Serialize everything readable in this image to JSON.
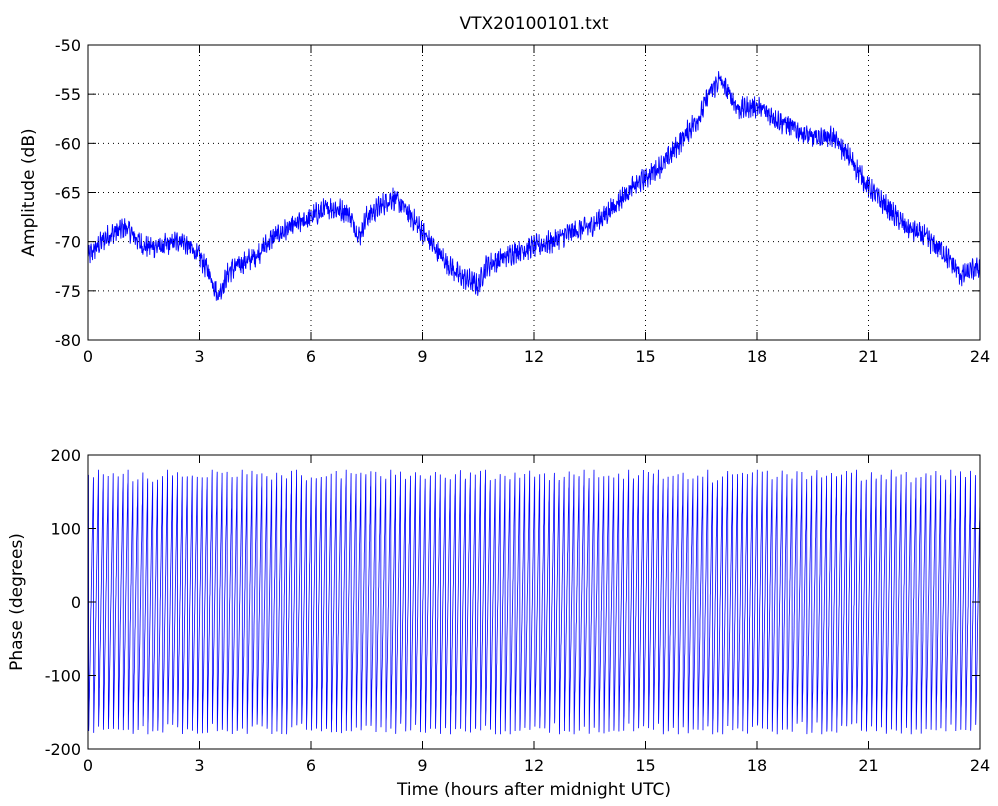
{
  "chart_data": [
    {
      "type": "line",
      "title": "VTX20100101.txt",
      "xlabel": "",
      "ylabel": "Amplitude (dB)",
      "xlim": [
        0,
        24
      ],
      "ylim": [
        -80,
        -50
      ],
      "xticks": [
        0,
        3,
        6,
        9,
        12,
        15,
        18,
        21,
        24
      ],
      "yticks": [
        -80,
        -75,
        -70,
        -65,
        -60,
        -55,
        -50
      ],
      "grid": true,
      "line_color": "#0000ff",
      "series": [
        {
          "x": [
            0,
            0.5,
            1,
            1.5,
            2,
            2.5,
            3,
            3.3,
            3.5,
            3.8,
            4,
            4.5,
            5,
            5.5,
            6,
            6.5,
            7,
            7.3,
            7.5,
            8,
            8.2,
            8.5,
            9,
            9.5,
            10,
            10.3,
            10.5,
            10.7,
            11,
            11.5,
            12,
            12.5,
            13,
            13.5,
            14,
            14.5,
            15,
            15.5,
            16,
            16.5,
            16.7,
            17,
            17.5,
            18,
            18.5,
            19,
            19.5,
            20,
            20.5,
            21,
            21.5,
            22,
            22.5,
            23,
            23.3,
            23.5,
            24
          ],
          "values": [
            -71.5,
            -69.5,
            -68.5,
            -70.5,
            -70.5,
            -69.8,
            -71.5,
            -73.5,
            -75.5,
            -73,
            -72.5,
            -71.5,
            -69.5,
            -68.5,
            -67.5,
            -66.5,
            -67,
            -69.5,
            -67.5,
            -66,
            -65.5,
            -66.5,
            -69,
            -71.5,
            -73.5,
            -74,
            -74.5,
            -72.5,
            -72,
            -71,
            -70.5,
            -70,
            -69,
            -68.5,
            -67,
            -65,
            -63.5,
            -62,
            -59.5,
            -57,
            -55,
            -53.5,
            -56.5,
            -56.2,
            -57.5,
            -58.5,
            -59.5,
            -59.2,
            -61.5,
            -64.5,
            -66.5,
            -68.5,
            -69.5,
            -71,
            -72.5,
            -73.5,
            -72.5
          ]
        }
      ]
    },
    {
      "type": "line",
      "title": "",
      "xlabel": "Time (hours after midnight UTC)",
      "ylabel": "Phase (degrees)",
      "xlim": [
        0,
        24
      ],
      "ylim": [
        -200,
        200
      ],
      "xticks": [
        0,
        3,
        6,
        9,
        12,
        15,
        18,
        21,
        24
      ],
      "yticks": [
        -200,
        -100,
        0,
        100,
        200
      ],
      "grid": false,
      "line_color": "#0000ff",
      "series": [
        {
          "wrap_range": [
            -180,
            180
          ],
          "approx_cycles_per_hour": 7.5
        }
      ]
    }
  ]
}
